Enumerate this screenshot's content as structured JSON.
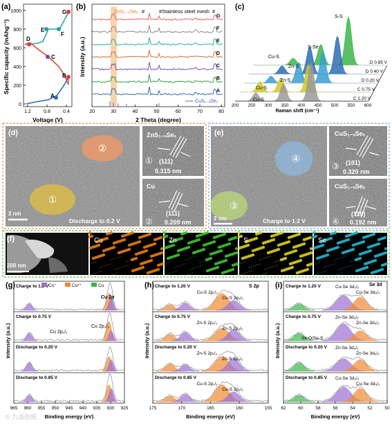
{
  "panels": {
    "a": {
      "label": "(a)",
      "ylabel": "Specific capacity (mAhg⁻¹)",
      "xlabel": "Voltage (V)",
      "yticks": [
        "0",
        "200",
        "400",
        "600",
        "800",
        "1000"
      ],
      "xticks": [
        "1.2",
        "0.8",
        "0.4"
      ],
      "points": [
        "A",
        "B",
        "C",
        "D",
        "E",
        "F",
        "G"
      ]
    },
    "b": {
      "label": "(b)",
      "ylabel": "Intensity (a.u.)",
      "xlabel": "2 Theta (degree)",
      "xticks": [
        "20",
        "30",
        "40",
        "50",
        "60",
        "70",
        "80"
      ],
      "znss": "ZnS₁₋ₓSeₓ",
      "steel": "#Stainless steel mesh",
      "hash1": "#",
      "hash2": "#",
      "hash3": "#",
      "cuss": "CuS₁₋ₓSeₓ",
      "traces": [
        "G",
        "F",
        "E",
        "D",
        "C",
        "B",
        "A"
      ]
    },
    "c": {
      "label": "(c)",
      "xlabel": "Raman shift (cm⁻¹)",
      "xticks": [
        "200",
        "250",
        "300",
        "350",
        "400",
        "450",
        "500",
        "550",
        "600"
      ],
      "traces": [
        "D 0.85 V",
        "D 0.40 V",
        "D 0.20 V",
        "C 0.75 V",
        "C 1.20 V"
      ],
      "peaks": [
        "S-S",
        "S-Se",
        "Cu-S",
        "Zn-S",
        "Zn-S",
        "Cu-S",
        "Cu-S"
      ]
    },
    "d": {
      "label": "(d)",
      "caption": "Discharge to 0.2 V",
      "scale": "2 nm",
      "circle1": "①",
      "circle2": "②",
      "inset1_title": "ZnS₁₋ₓSeₓ",
      "inset1_num": "①",
      "inset1_plane": "(111)",
      "inset1_d": "0.315 nm",
      "inset2_title": "Cu",
      "inset2_num": "②",
      "inset2_plane": "(111)",
      "inset2_d": "0.209 nm"
    },
    "e": {
      "label": "(e)",
      "caption": "Charge to 1.2 V",
      "scale": "2 nm",
      "circle3": "③",
      "circle4": "④",
      "inset3_title": "CuS₁₋ₓSeₓ",
      "inset3_num": "③",
      "inset3_plane": "(101)",
      "inset3_d": "0.320 nm",
      "inset4_title": "CuS₁₋ₓSeₓ",
      "inset4_num": "④",
      "inset4_plane": "(110)",
      "inset4_d": "0.192 nm"
    },
    "f": {
      "label": "(f)",
      "scale": "200 nm",
      "maps": [
        "Cu",
        "Zn",
        "S",
        "Se"
      ]
    },
    "g": {
      "label": "(g)",
      "ylabel": "Intensity (a.u.)",
      "xlabel": "Binding energy (eV)",
      "xticks": [
        "965",
        "960",
        "955",
        "950",
        "945",
        "940",
        "935",
        "930",
        "925"
      ],
      "legend": [
        "Cu⁺",
        "Cu²⁺",
        "Cu"
      ],
      "title": "Cu 2p",
      "rows": [
        "Charge to 1.2 V",
        "Charge to 0.75 V",
        "Discharge to 0.20 V",
        "Discharge to 0.85 V"
      ],
      "peak_a": "Cu 2p₁/₂",
      "peak_b": "Cu 2p₃/₂"
    },
    "h": {
      "label": "(h)",
      "ylabel": "Intensity (a.u.)",
      "xlabel": "Binding energy (eV)",
      "xticks": [
        "175",
        "170",
        "165",
        "160",
        "155"
      ],
      "title": "S 2p",
      "rows": [
        "Charge to 1.20 V",
        "Charge to 0.75 V",
        "Discharge to 0.20 V",
        "Discharge to 0.85 V"
      ],
      "peaks": [
        [
          "Cu-S 2p₁/₂",
          "Cu-S 2p₃/₂"
        ],
        [
          "Zn-S 2p₁/₂",
          "Zn-S 2p₃/₂"
        ],
        [
          "Zn-S 2p₁/₂",
          "Zn-S 2p₃/₂"
        ],
        [
          "Cu-S 2p₁/₂",
          "Cu-S 2p₃/₂"
        ]
      ]
    },
    "i": {
      "label": "(i)",
      "ylabel": "Intensity (a.u.)",
      "xlabel": "Binding energy (eV)",
      "xticks": [
        "62",
        "60",
        "58",
        "56",
        "54",
        "52",
        "50"
      ],
      "title": "Se 3d",
      "rows": [
        "Charge to 1.20 V",
        "Charge to 0.75 V",
        "Discharge to 0.20 V",
        "Discharge to 0.85 V"
      ],
      "peaks": [
        [
          "Cu-Se 3d₃/₂",
          "Cu-Se 3d₅/₂"
        ],
        [
          "Zn-Se 3d₃/₂",
          "Zn-Se 3d₅/₂"
        ],
        [
          "Zn-Se 3d₃/₂",
          "Zn-Se 3d₅/₂"
        ],
        [
          "Cu-Se 3d₃/₂",
          "Cu-Se 3d₅/₂"
        ]
      ],
      "seos": "Se-O/Se-S"
    }
  },
  "colors": {
    "blue": "#2e6db3",
    "teal": "#21a0a0",
    "red": "#e03a3a",
    "purple": "#9b6fd0",
    "orange": "#f08a30",
    "green": "#3cb54a",
    "cu_map": "#e07a10",
    "zn_map": "#3cbf2e",
    "s_map": "#d6cc1c",
    "se_map": "#20b2c8",
    "border_d": "#e8a070",
    "border_e": "#8fb4d8",
    "border_f": "#7cc46a"
  },
  "watermark": "© 九派创投"
}
